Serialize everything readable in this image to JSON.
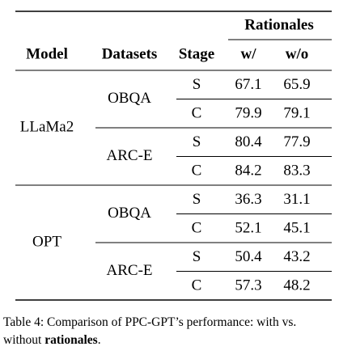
{
  "header": {
    "group": "Rationales",
    "columns": [
      "Model",
      "Datasets",
      "Stage",
      "w/",
      "w/o"
    ]
  },
  "table": {
    "groups": [
      {
        "model": "LLaMa2",
        "datasets": [
          {
            "name": "OBQA",
            "rows": [
              [
                "S",
                67.1,
                65.9
              ],
              [
                "C",
                79.9,
                79.1
              ]
            ]
          },
          {
            "name": "ARC-E",
            "rows": [
              [
                "S",
                80.4,
                77.9
              ],
              [
                "C",
                84.2,
                83.3
              ]
            ]
          }
        ]
      },
      {
        "model": "OPT",
        "datasets": [
          {
            "name": "OBQA",
            "rows": [
              [
                "S",
                36.3,
                31.1
              ],
              [
                "C",
                52.1,
                45.1
              ]
            ]
          },
          {
            "name": "ARC-E",
            "rows": [
              [
                "S",
                50.4,
                43.2
              ],
              [
                "C",
                57.3,
                48.2
              ]
            ]
          }
        ]
      }
    ]
  },
  "caption": {
    "parts": [
      "Table 4: Comparison of PPC-GPT’s performance: with vs. without ",
      "rationales",
      "."
    ]
  }
}
